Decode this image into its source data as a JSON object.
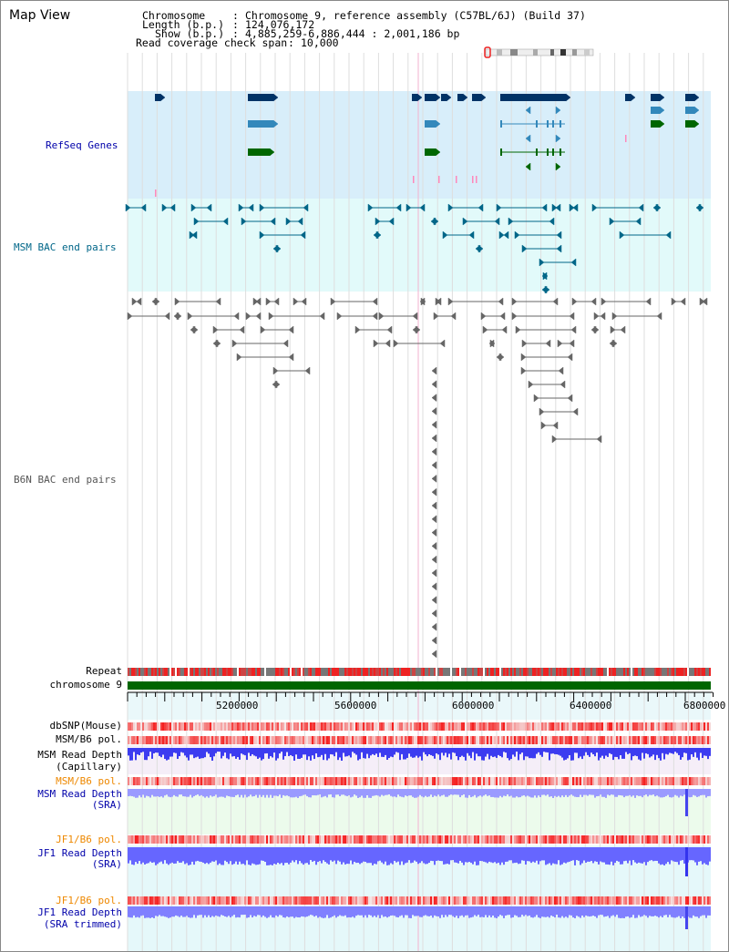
{
  "title": "Map View",
  "header": {
    "chromosome_key": "Chromosome",
    "chromosome_val": "Chromosome 9, reference assembly (C57BL/6J) (Build 37)",
    "length_key": "Length (b.p.)",
    "length_val": "124,076,172",
    "show_key": "Show (b.p.)",
    "show_val": "4,885,259-6,886,444 : 2,001,186 bp",
    "span_key": "Read coverage check span",
    "span_val": "10,000"
  },
  "tracks": {
    "refseq": "RefSeq Genes",
    "msm_bac": "MSM BAC end pairs",
    "b6n_bac": "B6N BAC end pairs",
    "repeat": "Repeat",
    "chromosome": "chromosome 9",
    "dbsnp": "dbSNP(Mouse)",
    "msm_pol_1": "MSM/B6 pol.",
    "msm_depth_cap_1": "MSM Read Depth",
    "msm_depth_cap_2": "(Capillary)",
    "msm_pol_2": "MSM/B6 pol.",
    "msm_depth_sra_1": "MSM Read Depth",
    "msm_depth_sra_2": "(SRA)",
    "jf1_pol_1": "JF1/B6 pol.",
    "jf1_depth_1": "JF1 Read Depth",
    "jf1_depth_2": "(SRA)",
    "jf1_pol_2": "JF1/B6 pol.",
    "jf1_trim_1": "JF1 Read Depth",
    "jf1_trim_2": "(SRA trimmed)"
  },
  "axis": {
    "ticks": [
      "5200000",
      "5600000",
      "6000000",
      "6400000",
      "6800000"
    ]
  },
  "colors": {
    "refseq_bg": "#d8eefa",
    "msm_bg": "#e2fafa",
    "gene_dark": "#003366",
    "gene_mid": "#3388bb",
    "gene_green": "#006600",
    "msm_pair": "#006688",
    "b6n_pair": "#666666",
    "repeat_red": "#ee2222",
    "depth_blue": "#3333ff",
    "label_blue": "#0000aa",
    "label_orange": "#ee8800"
  }
}
